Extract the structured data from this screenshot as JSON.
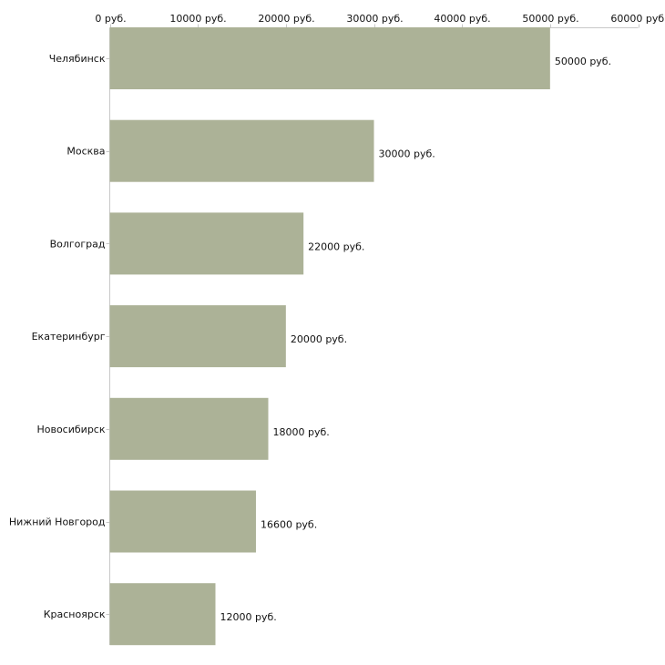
{
  "chart_data": {
    "type": "bar",
    "orientation": "horizontal",
    "title": "",
    "xlabel": "",
    "ylabel": "",
    "xlim": [
      0,
      60000
    ],
    "unit_suffix": " руб.",
    "ticks": [
      0,
      10000,
      20000,
      30000,
      40000,
      50000,
      60000
    ],
    "tick_labels": [
      "0 руб.",
      "10000 руб.",
      "20000 руб.",
      "30000 руб.",
      "40000 руб.",
      "50000 руб.",
      "60000 руб."
    ],
    "categories": [
      "Челябинск",
      "Москва",
      "Волгоград",
      "Екатеринбург",
      "Новосибирск",
      "Нижний Новгород",
      "Красноярск"
    ],
    "values": [
      50000,
      30000,
      22000,
      20000,
      18000,
      16600,
      12000
    ],
    "value_labels": [
      "50000 руб.",
      "30000 руб.",
      "22000 руб.",
      "20000 руб.",
      "18000 руб.",
      "16600 руб.",
      "12000 руб."
    ],
    "bar_color": "#acb297",
    "axis_color": "#c8c8c8",
    "grid": false,
    "legend": "none"
  }
}
